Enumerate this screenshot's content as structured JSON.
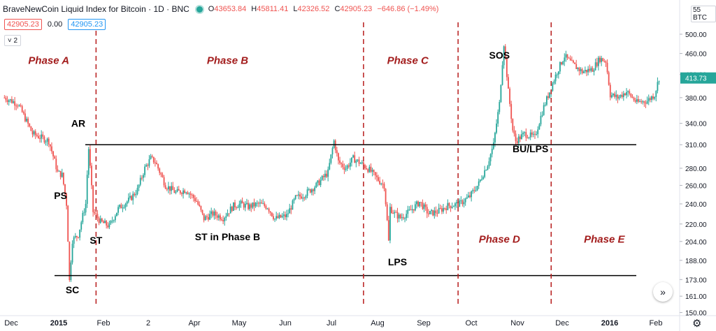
{
  "header": {
    "title": "BraveNewCoin Liquid Index for Bitcoin · 1D · BNC",
    "ohlc": [
      {
        "k": "O",
        "v": "43653.84"
      },
      {
        "k": "H",
        "v": "45811.41"
      },
      {
        "k": "L",
        "v": "42326.52"
      },
      {
        "k": "C",
        "v": "42905.23"
      },
      {
        "k": "",
        "v": "−646.86 (−1.49%)"
      }
    ],
    "price_box_1": "42905.23",
    "price_zero": "0.00",
    "price_box_2": "42905.23",
    "collapse_label": "˅ 2"
  },
  "axis": {
    "currency": "BTC",
    "top_partial": "55",
    "current_price": "413.73",
    "scroll_icon": "»",
    "settings_icon": "⚙"
  },
  "colors": {
    "up": "#26a69a",
    "down": "#ef5350",
    "phase_line": "#b71c1c",
    "phase_text": "#a31d1d"
  },
  "chart_data": {
    "type": "candlestick",
    "y_scale": "log",
    "ylim": [
      148,
      520
    ],
    "y_ticks": [
      "500.00",
      "460.00",
      "420.00",
      "380.00",
      "340.00",
      "310.00",
      "280.00",
      "260.00",
      "240.00",
      "220.00",
      "204.00",
      "188.00",
      "173.00",
      "161.00",
      "150.00"
    ],
    "x_ticks": [
      "Dec",
      "2015",
      "Feb",
      "2",
      "Apr",
      "May",
      "Jun",
      "Jul",
      "Aug",
      "Sep",
      "Oct",
      "Nov",
      "Dec",
      "2016",
      "Feb"
    ],
    "price_path": [
      [
        "2014-12-01",
        380
      ],
      [
        "2014-12-10",
        370
      ],
      [
        "2014-12-20",
        325
      ],
      [
        "2014-12-31",
        315
      ],
      [
        "2015-01-06",
        275
      ],
      [
        "2015-01-09",
        272
      ],
      [
        "2015-01-12",
        240
      ],
      [
        "2015-01-14",
        172
      ],
      [
        "2015-01-16",
        205
      ],
      [
        "2015-01-20",
        210
      ],
      [
        "2015-01-25",
        240
      ],
      [
        "2015-01-27",
        305
      ],
      [
        "2015-01-30",
        232
      ],
      [
        "2015-02-04",
        222
      ],
      [
        "2015-02-10",
        218
      ],
      [
        "2015-02-16",
        235
      ],
      [
        "2015-02-24",
        245
      ],
      [
        "2015-03-01",
        255
      ],
      [
        "2015-03-06",
        280
      ],
      [
        "2015-03-10",
        292
      ],
      [
        "2015-03-13",
        288
      ],
      [
        "2015-03-20",
        260
      ],
      [
        "2015-03-27",
        252
      ],
      [
        "2015-04-03",
        255
      ],
      [
        "2015-04-10",
        243
      ],
      [
        "2015-04-15",
        225
      ],
      [
        "2015-04-21",
        230
      ],
      [
        "2015-04-28",
        226
      ],
      [
        "2015-05-05",
        238
      ],
      [
        "2015-05-10",
        240
      ],
      [
        "2015-05-15",
        237
      ],
      [
        "2015-05-22",
        240
      ],
      [
        "2015-05-28",
        237
      ],
      [
        "2015-06-02",
        225
      ],
      [
        "2015-06-10",
        228
      ],
      [
        "2015-06-16",
        246
      ],
      [
        "2015-06-22",
        250
      ],
      [
        "2015-06-30",
        260
      ],
      [
        "2015-07-08",
        275
      ],
      [
        "2015-07-12",
        315
      ],
      [
        "2015-07-15",
        288
      ],
      [
        "2015-07-20",
        280
      ],
      [
        "2015-07-25",
        292
      ],
      [
        "2015-07-31",
        285
      ],
      [
        "2015-08-05",
        278
      ],
      [
        "2015-08-10",
        268
      ],
      [
        "2015-08-15",
        260
      ],
      [
        "2015-08-18",
        204
      ],
      [
        "2015-08-19",
        236
      ],
      [
        "2015-08-22",
        230
      ],
      [
        "2015-08-26",
        226
      ],
      [
        "2015-09-01",
        232
      ],
      [
        "2015-09-08",
        242
      ],
      [
        "2015-09-14",
        230
      ],
      [
        "2015-09-20",
        232
      ],
      [
        "2015-09-27",
        238
      ],
      [
        "2015-10-05",
        240
      ],
      [
        "2015-10-12",
        248
      ],
      [
        "2015-10-18",
        262
      ],
      [
        "2015-10-24",
        285
      ],
      [
        "2015-10-28",
        310
      ],
      [
        "2015-11-01",
        370
      ],
      [
        "2015-11-04",
        480
      ],
      [
        "2015-11-07",
        390
      ],
      [
        "2015-11-10",
        330
      ],
      [
        "2015-11-12",
        315
      ],
      [
        "2015-11-18",
        325
      ],
      [
        "2015-11-25",
        320
      ],
      [
        "2015-12-01",
        365
      ],
      [
        "2015-12-05",
        390
      ],
      [
        "2015-12-10",
        425
      ],
      [
        "2015-12-15",
        455
      ],
      [
        "2015-12-20",
        440
      ],
      [
        "2015-12-27",
        425
      ],
      [
        "2016-01-03",
        430
      ],
      [
        "2016-01-08",
        450
      ],
      [
        "2016-01-12",
        445
      ],
      [
        "2016-01-15",
        385
      ],
      [
        "2016-01-20",
        380
      ],
      [
        "2016-01-26",
        390
      ],
      [
        "2016-02-02",
        372
      ],
      [
        "2016-02-09",
        375
      ],
      [
        "2016-02-14",
        385
      ],
      [
        "2016-02-17",
        413.73
      ]
    ],
    "support_line": 176,
    "resistance_line": 310,
    "current_value": 413.73,
    "phase_dividers": [
      "2015-02-01",
      "2015-08-01",
      "2015-10-04",
      "2015-12-06"
    ],
    "phase_labels": [
      {
        "text": "Phase A",
        "date": "2014-12-31",
        "price": 440
      },
      {
        "text": "Phase B",
        "date": "2015-05-01",
        "price": 440
      },
      {
        "text": "Phase C",
        "date": "2015-08-31",
        "price": 440
      },
      {
        "text": "Phase D",
        "date": "2015-11-01",
        "price": 203
      },
      {
        "text": "Phase E",
        "date": "2016-01-11",
        "price": 203
      }
    ],
    "annotations": [
      {
        "text": "AR",
        "date": "2015-01-20",
        "price": 335
      },
      {
        "text": "PS",
        "date": "2015-01-08",
        "price": 245
      },
      {
        "text": "ST",
        "date": "2015-02-01",
        "price": 202
      },
      {
        "text": "SC",
        "date": "2015-01-16",
        "price": 163
      },
      {
        "text": "ST in Phase B",
        "date": "2015-05-01",
        "price": 205
      },
      {
        "text": "LPS",
        "date": "2015-08-24",
        "price": 184
      },
      {
        "text": "SOS",
        "date": "2015-11-01",
        "price": 450
      },
      {
        "text": "BU/LPS",
        "date": "2015-11-22",
        "price": 300
      }
    ]
  }
}
